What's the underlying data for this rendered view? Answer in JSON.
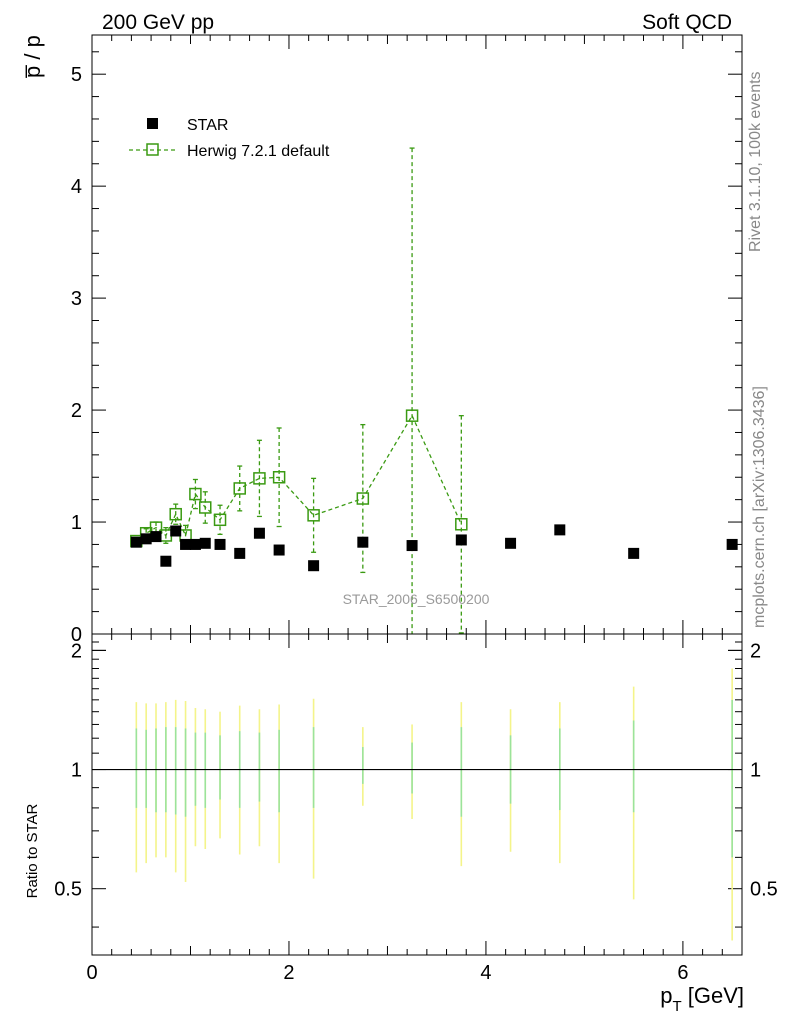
{
  "header": {
    "left": "200 GeV pp",
    "right": "Soft QCD"
  },
  "side_labels": {
    "rivet": "Rivet 3.1.10,  100k events",
    "mcplots": "mcplots.cern.ch [arXiv:1306.3436]"
  },
  "watermark": "STAR_2006_S6500200",
  "colors": {
    "star": "#000000",
    "herwig": "#3a9a12",
    "band_inner": "#9be39b",
    "band_outer": "#f4f48a"
  },
  "chart_data": [
    {
      "type": "scatter",
      "panel": "main",
      "ylabel": "p̅ / p",
      "xlabel": "",
      "xlim": [
        0,
        6.6
      ],
      "ylim": [
        0,
        5.35
      ],
      "yticks": [
        0,
        1,
        2,
        3,
        4,
        5
      ],
      "ytick_labels": [
        "0",
        "1",
        "2",
        "3",
        "4",
        "5"
      ],
      "legend": {
        "placement": "top-left"
      },
      "series": [
        {
          "name": "STAR",
          "marker": "filled-square",
          "x": [
            0.45,
            0.55,
            0.65,
            0.75,
            0.85,
            0.95,
            1.05,
            1.15,
            1.3,
            1.5,
            1.7,
            1.9,
            2.25,
            2.75,
            3.25,
            3.75,
            4.25,
            4.75,
            5.5,
            6.5
          ],
          "y": [
            0.82,
            0.85,
            0.87,
            0.65,
            0.92,
            0.8,
            0.8,
            0.81,
            0.8,
            0.72,
            0.9,
            0.75,
            0.61,
            0.82,
            0.79,
            0.84,
            0.81,
            0.93,
            0.72,
            0.8
          ]
        },
        {
          "name": "Herwig 7.2.1 default",
          "marker": "open-square",
          "line": "dashed",
          "x": [
            0.45,
            0.55,
            0.65,
            0.75,
            0.85,
            0.95,
            1.05,
            1.15,
            1.3,
            1.5,
            1.7,
            1.9,
            2.25,
            2.75,
            3.25,
            3.75
          ],
          "y": [
            0.83,
            0.9,
            0.95,
            0.88,
            1.07,
            0.88,
            1.25,
            1.13,
            1.02,
            1.3,
            1.39,
            1.4,
            1.06,
            1.21,
            1.95,
            0.98
          ],
          "yerr": [
            0.03,
            0.04,
            0.05,
            0.07,
            0.09,
            0.09,
            0.13,
            0.14,
            0.13,
            0.2,
            0.34,
            0.44,
            0.33,
            0.66,
            2.39,
            0.97
          ]
        }
      ]
    },
    {
      "type": "band",
      "panel": "ratio",
      "ylabel": "Ratio to STAR",
      "xlabel": "p_T [GeV]",
      "xlabel_main": "p",
      "xlabel_sub": "T",
      "xlabel_unit": " [GeV]",
      "xlim": [
        0,
        6.6
      ],
      "ylim": [
        0.34,
        2.2
      ],
      "yscale": "log",
      "xticks": [
        0,
        2,
        4,
        6
      ],
      "xtick_labels": [
        "0",
        "2",
        "4",
        "6"
      ],
      "yticks": [
        0.5,
        1,
        2
      ],
      "ytick_labels": [
        "0.5",
        "1",
        "2"
      ],
      "reference": 1,
      "x": [
        0.45,
        0.55,
        0.65,
        0.75,
        0.85,
        0.95,
        1.05,
        1.15,
        1.3,
        1.5,
        1.7,
        1.9,
        2.25,
        2.75,
        3.25,
        3.75,
        4.25,
        4.75,
        5.5,
        6.5
      ],
      "inner": [
        [
          0.8,
          1.27
        ],
        [
          0.8,
          1.26
        ],
        [
          0.78,
          1.27
        ],
        [
          0.78,
          1.28
        ],
        [
          0.77,
          1.28
        ],
        [
          0.76,
          1.27
        ],
        [
          0.81,
          1.24
        ],
        [
          0.8,
          1.24
        ],
        [
          0.84,
          1.22
        ],
        [
          0.8,
          1.25
        ],
        [
          0.83,
          1.24
        ],
        [
          0.78,
          1.26
        ],
        [
          0.8,
          1.28
        ],
        [
          0.92,
          1.14
        ],
        [
          0.87,
          1.17
        ],
        [
          0.76,
          1.28
        ],
        [
          0.82,
          1.22
        ],
        [
          0.79,
          1.27
        ],
        [
          0.78,
          1.33
        ],
        [
          0.6,
          1.5
        ]
      ],
      "outer": [
        [
          0.55,
          1.48
        ],
        [
          0.58,
          1.47
        ],
        [
          0.6,
          1.47
        ],
        [
          0.6,
          1.48
        ],
        [
          0.55,
          1.5
        ],
        [
          0.52,
          1.49
        ],
        [
          0.64,
          1.43
        ],
        [
          0.63,
          1.42
        ],
        [
          0.67,
          1.4
        ],
        [
          0.61,
          1.45
        ],
        [
          0.64,
          1.42
        ],
        [
          0.58,
          1.46
        ],
        [
          0.53,
          1.51
        ],
        [
          0.81,
          1.28
        ],
        [
          0.75,
          1.3
        ],
        [
          0.57,
          1.48
        ],
        [
          0.62,
          1.42
        ],
        [
          0.58,
          1.48
        ],
        [
          0.47,
          1.62
        ],
        [
          0.37,
          1.8
        ]
      ]
    }
  ]
}
